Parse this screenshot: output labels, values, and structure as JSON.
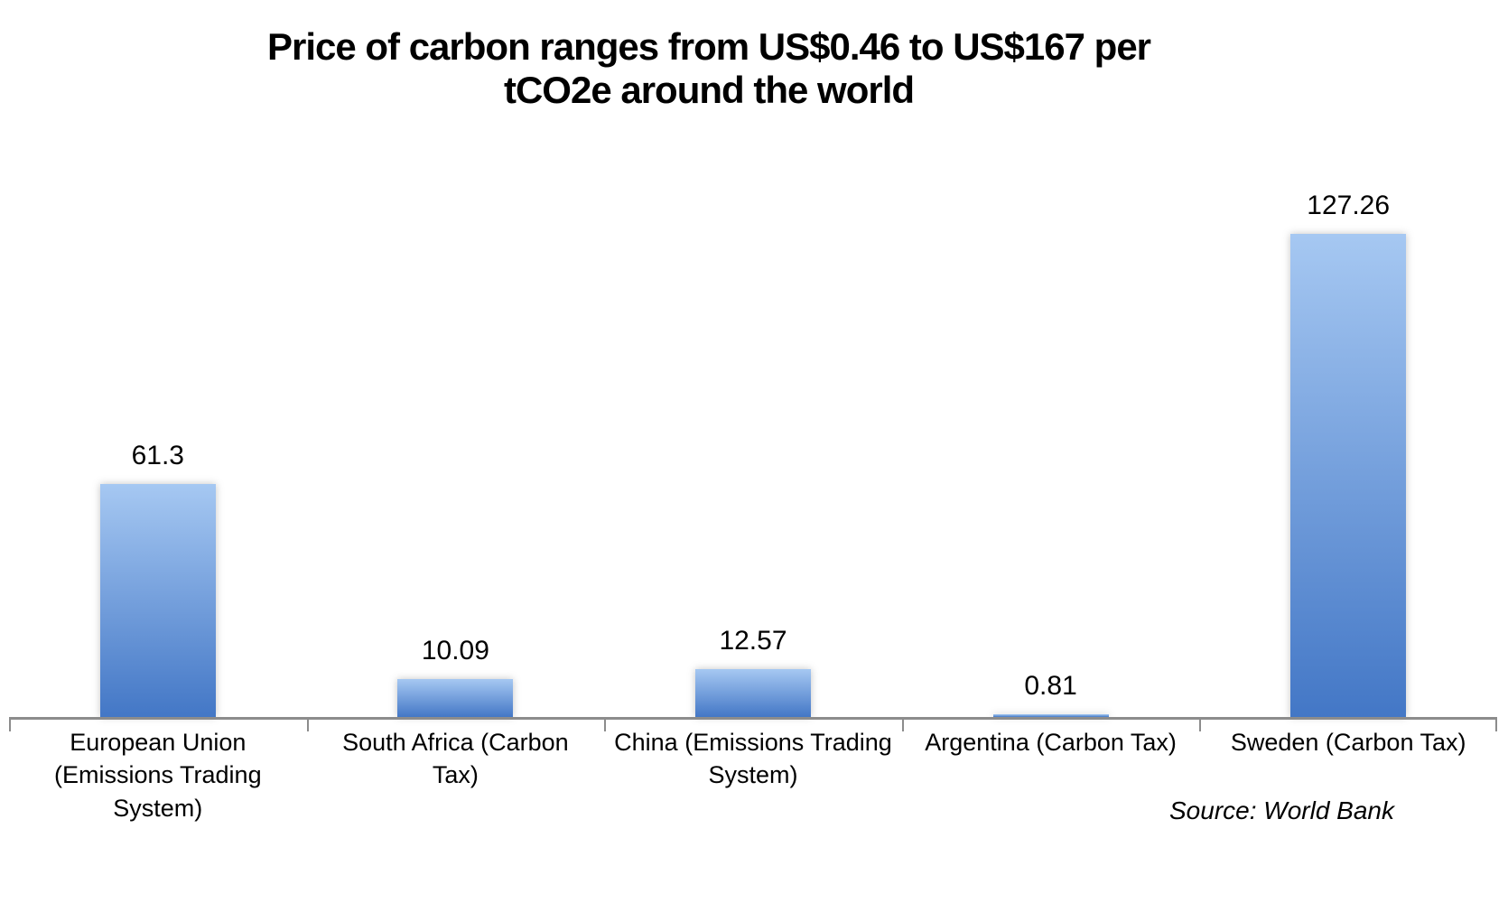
{
  "chart_data": {
    "type": "bar",
    "title": "Price of carbon ranges from US$0.46 to US$167 per tCO2e around the world",
    "title_display": "Price of carbon ranges from US$0.46 to US$167 per\ntCO2e around the world",
    "categories": [
      "European Union (Emissions Trading System)",
      "South Africa (Carbon Tax)",
      "China (Emissions Trading System)",
      "Argentina (Carbon Tax)",
      "Sweden (Carbon Tax)"
    ],
    "categories_display": [
      "European Union\n(Emissions Trading\nSystem)",
      "South Africa (Carbon\nTax)",
      "China (Emissions Trading\nSystem)",
      "Argentina (Carbon Tax)",
      "Sweden (Carbon Tax)"
    ],
    "values": [
      61.3,
      10.09,
      12.57,
      0.81,
      127.26
    ],
    "value_labels": [
      "61.3",
      "10.09",
      "12.57",
      "0.81",
      "127.26"
    ],
    "xlabel": "",
    "ylabel": "",
    "ylim": [
      0,
      150
    ],
    "grid": false,
    "legend": false,
    "colors": {
      "bar_gradient_top": "#A6C8F2",
      "bar_gradient_bottom": "#4377C6",
      "axis": "#8C8C8C",
      "text": "#000000",
      "background": "#FFFFFF"
    },
    "source_note": "Source: World Bank"
  }
}
